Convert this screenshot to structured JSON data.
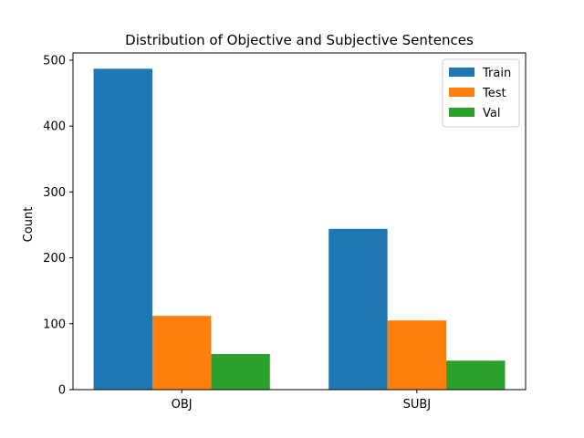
{
  "chart_data": {
    "type": "bar",
    "title": "Distribution of Objective and Subjective Sentences",
    "xlabel": "",
    "ylabel": "Count",
    "categories": [
      "OBJ",
      "SUBJ"
    ],
    "series": [
      {
        "name": "Train",
        "values": [
          487,
          244
        ],
        "color": "#1f77b4"
      },
      {
        "name": "Test",
        "values": [
          112,
          105
        ],
        "color": "#ff7f0e"
      },
      {
        "name": "Val",
        "values": [
          54,
          44
        ],
        "color": "#2ca02c"
      }
    ],
    "ylim": [
      0,
      511
    ],
    "yticks": [
      0,
      100,
      200,
      300,
      400,
      500
    ],
    "grid": false,
    "legend_position": "top-right"
  }
}
